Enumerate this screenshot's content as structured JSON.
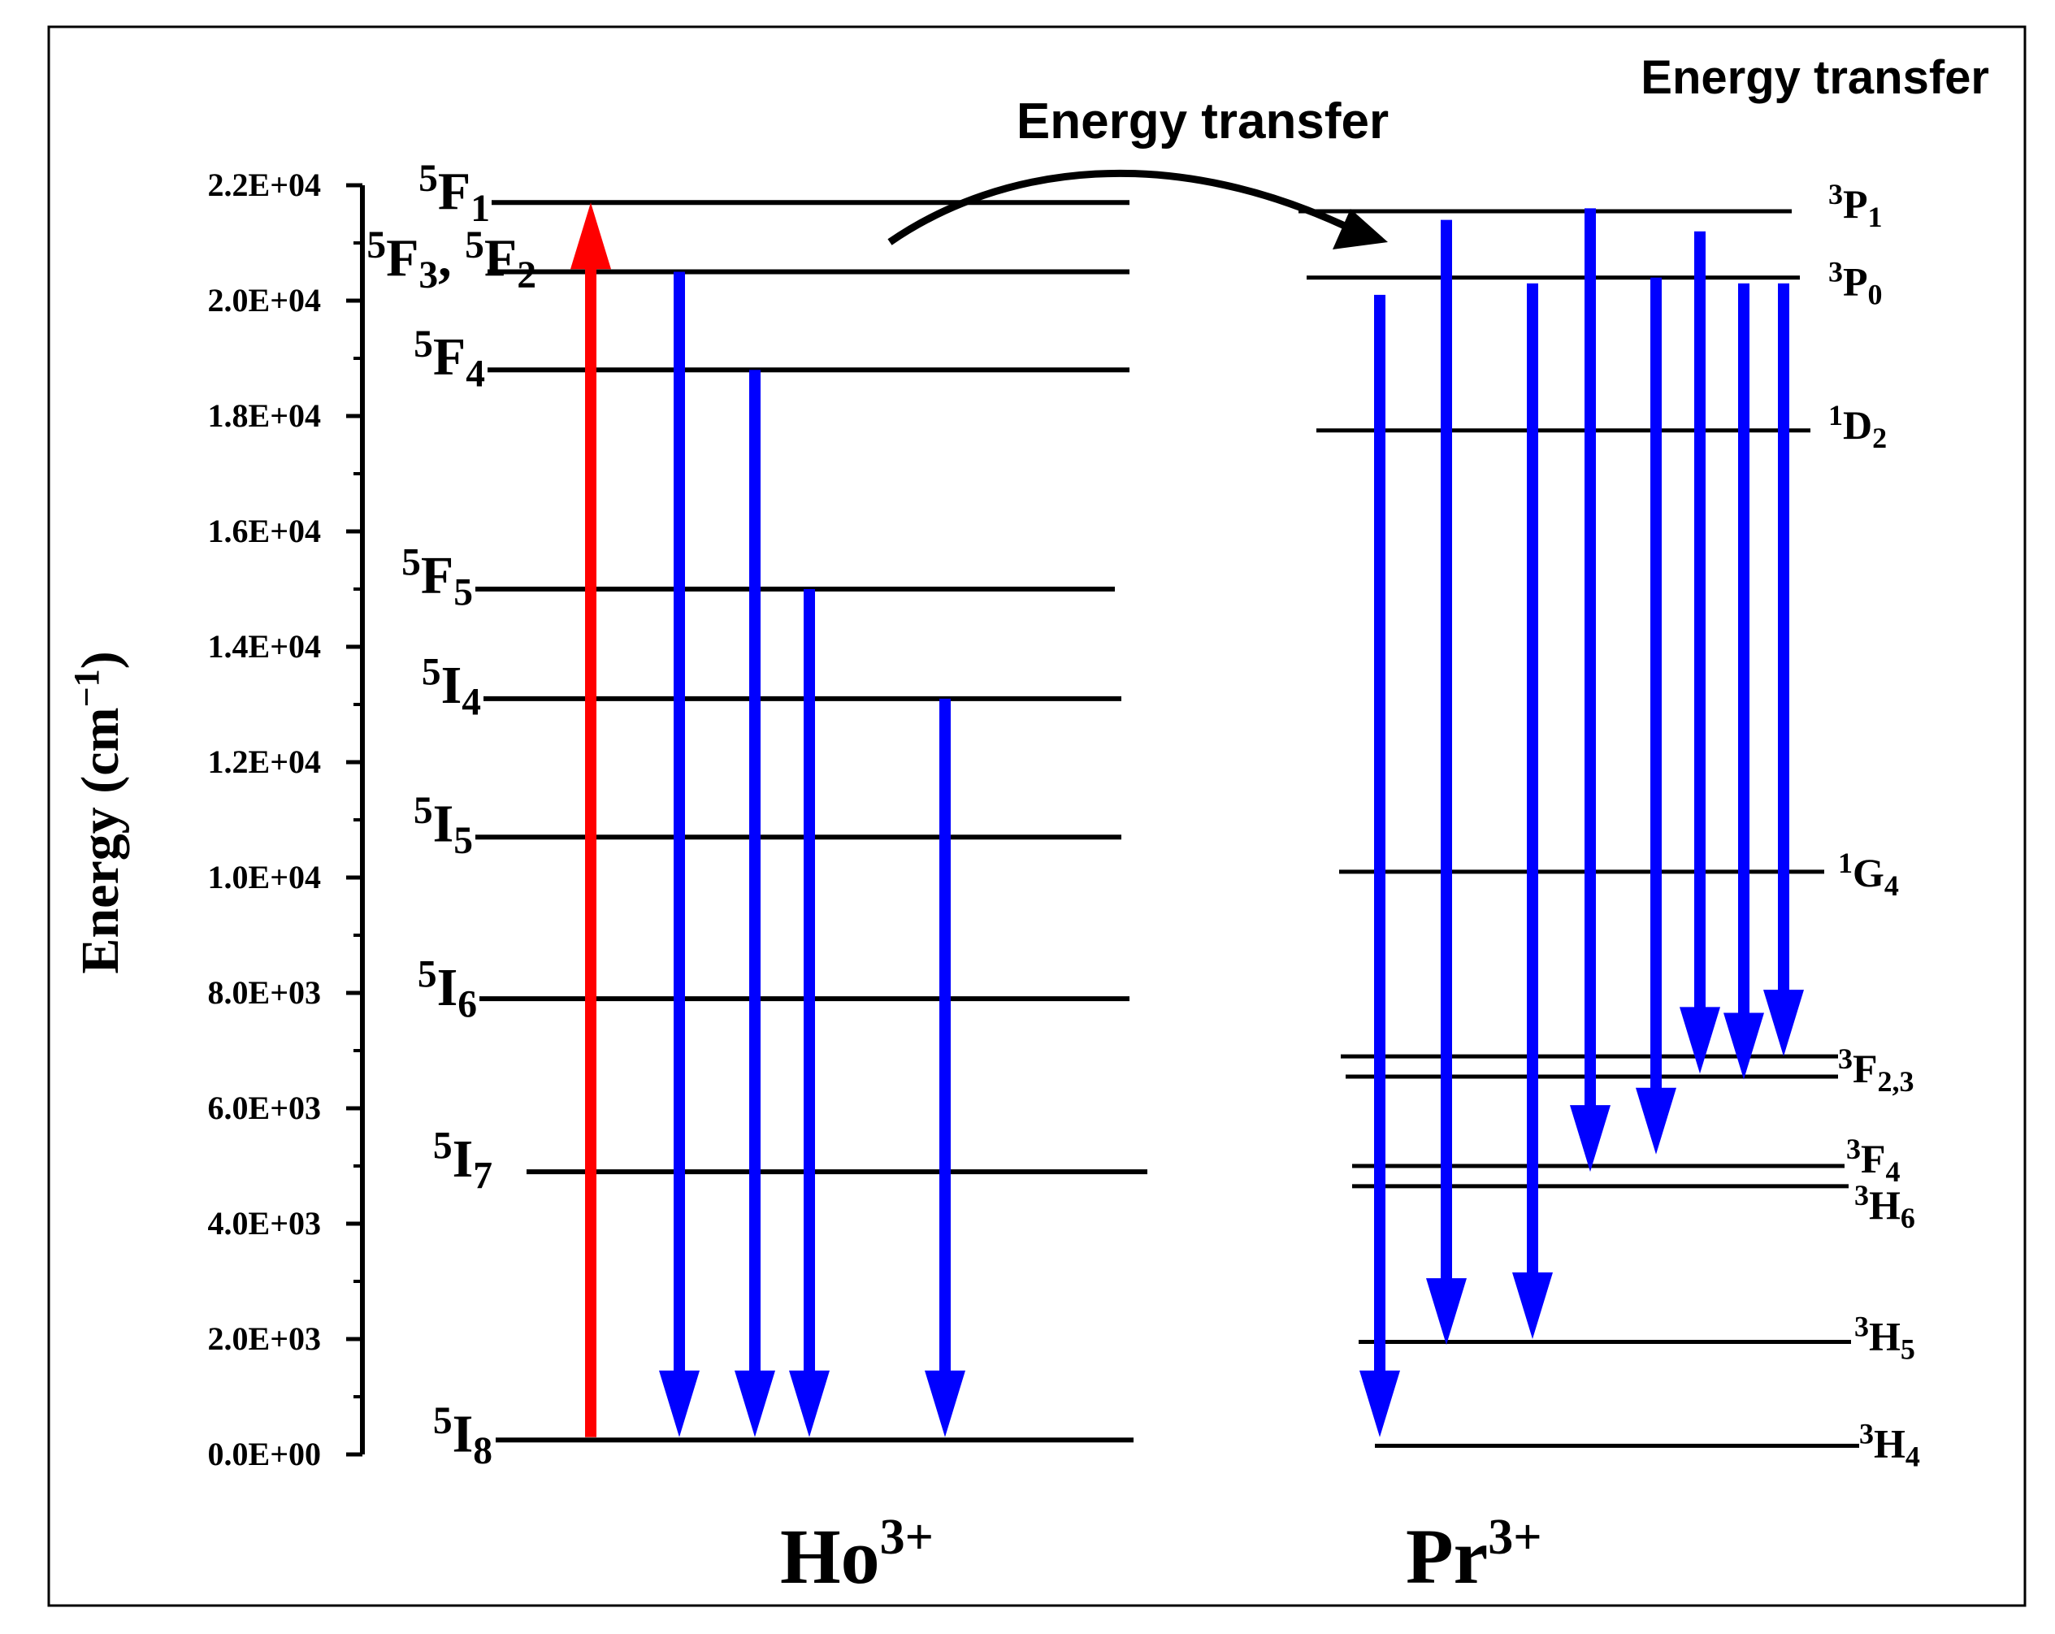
{
  "headings": {
    "top_right": "Energy transfer",
    "arrow_label": "Energy transfer"
  },
  "axis": {
    "label_main": "Energy (cm",
    "label_exp": "−1",
    "label_close": ")",
    "range": [
      0,
      22000
    ],
    "ticks": [
      {
        "value": 0,
        "label": "0.0E+00"
      },
      {
        "value": 2000,
        "label": "2.0E+03"
      },
      {
        "value": 4000,
        "label": "4.0E+03"
      },
      {
        "value": 6000,
        "label": "6.0E+03"
      },
      {
        "value": 8000,
        "label": "8.0E+03"
      },
      {
        "value": 10000,
        "label": "1.0E+04"
      },
      {
        "value": 12000,
        "label": "1.2E+04"
      },
      {
        "value": 14000,
        "label": "1.4E+04"
      },
      {
        "value": 16000,
        "label": "1.6E+04"
      },
      {
        "value": 18000,
        "label": "1.8E+04"
      },
      {
        "value": 20000,
        "label": "2.0E+04"
      },
      {
        "value": 22000,
        "label": "2.2E+04"
      }
    ]
  },
  "ions": {
    "ho": {
      "base": "Ho",
      "sup": "3+"
    },
    "pr": {
      "base": "Pr",
      "sup": "3+"
    }
  },
  "ho_levels": [
    {
      "id": "5F1",
      "energy": 21700,
      "parts": [
        {
          "sup": "5"
        },
        {
          "base": "F"
        },
        {
          "sub": "1"
        }
      ]
    },
    {
      "id": "5F3_5F2",
      "energy": 20500,
      "parts": [
        {
          "sup": "5"
        },
        {
          "base": "F"
        },
        {
          "sub": "3"
        },
        {
          "base": ", "
        },
        {
          "sup": "5"
        },
        {
          "base": "F"
        },
        {
          "sub": "2"
        }
      ]
    },
    {
      "id": "5F4",
      "energy": 18800,
      "parts": [
        {
          "sup": "5"
        },
        {
          "base": "F"
        },
        {
          "sub": "4"
        }
      ]
    },
    {
      "id": "5F5",
      "energy": 15000,
      "parts": [
        {
          "sup": "5"
        },
        {
          "base": "F"
        },
        {
          "sub": "5"
        }
      ]
    },
    {
      "id": "5I4",
      "energy": 13100,
      "parts": [
        {
          "sup": "5"
        },
        {
          "base": "I"
        },
        {
          "sub": "4"
        }
      ]
    },
    {
      "id": "5I5",
      "energy": 10700,
      "parts": [
        {
          "sup": "5"
        },
        {
          "base": "I"
        },
        {
          "sub": "5"
        }
      ]
    },
    {
      "id": "5I6",
      "energy": 7900,
      "parts": [
        {
          "sup": "5"
        },
        {
          "base": "I"
        },
        {
          "sub": "6"
        }
      ]
    },
    {
      "id": "5I7",
      "energy": 4900,
      "parts": [
        {
          "sup": "5"
        },
        {
          "base": "I"
        },
        {
          "sub": "7"
        }
      ]
    },
    {
      "id": "5I8",
      "energy": 250,
      "parts": [
        {
          "sup": "5"
        },
        {
          "base": "I"
        },
        {
          "sub": "8"
        }
      ]
    }
  ],
  "pr_levels": [
    {
      "id": "3P1",
      "energy": 21550,
      "parts": [
        {
          "sup": "3"
        },
        {
          "base": "P"
        },
        {
          "sub": "1"
        }
      ]
    },
    {
      "id": "3P0",
      "energy": 20400,
      "parts": [
        {
          "sup": "3"
        },
        {
          "base": "P"
        },
        {
          "sub": "0"
        }
      ]
    },
    {
      "id": "1D2",
      "energy": 17750,
      "parts": [
        {
          "sup": "1"
        },
        {
          "base": "D"
        },
        {
          "sub": "2"
        }
      ]
    },
    {
      "id": "1G4",
      "energy": 10100,
      "parts": [
        {
          "sup": "1"
        },
        {
          "base": "G"
        },
        {
          "sub": "4"
        }
      ]
    },
    {
      "id": "3F2,3",
      "energy": 6900,
      "parts": [
        {
          "sup": "3"
        },
        {
          "base": "F"
        },
        {
          "sub": "2,3"
        }
      ]
    },
    {
      "id": "3F4",
      "energy": 5000,
      "parts": [
        {
          "sup": "3"
        },
        {
          "base": "F"
        },
        {
          "sub": "4"
        }
      ]
    },
    {
      "id": "3H6",
      "energy": 4650,
      "parts": [
        {
          "sup": "3"
        },
        {
          "base": "H"
        },
        {
          "sub": "6"
        }
      ]
    },
    {
      "id": "3H5",
      "energy": 1950,
      "parts": [
        {
          "sup": "3"
        },
        {
          "base": "H"
        },
        {
          "sub": "5"
        }
      ]
    },
    {
      "id": "3H4",
      "energy": 150,
      "parts": [
        {
          "sup": "3"
        },
        {
          "base": "H"
        },
        {
          "sub": "4"
        }
      ]
    }
  ],
  "transitions": {
    "excitation": {
      "from": 300,
      "to": 21700,
      "color": "#ff0000"
    },
    "ho_emissions": [
      {
        "from": 20500,
        "to": 300
      },
      {
        "from": 18800,
        "to": 300
      },
      {
        "from": 15000,
        "to": 300
      },
      {
        "from": 13100,
        "to": 300
      }
    ],
    "pr_emissions": [
      {
        "from": 20100,
        "to": 300
      },
      {
        "from": 21400,
        "to": 1900
      },
      {
        "from": 20300,
        "to": 2000
      },
      {
        "from": 21600,
        "to": 4900
      },
      {
        "from": 20400,
        "to": 5200
      },
      {
        "from": 21200,
        "to": 6600
      },
      {
        "from": 20300,
        "to": 6500
      },
      {
        "from": 20300,
        "to": 6900
      }
    ],
    "emission_color": "#0000ff",
    "transfer_color": "#000000"
  }
}
